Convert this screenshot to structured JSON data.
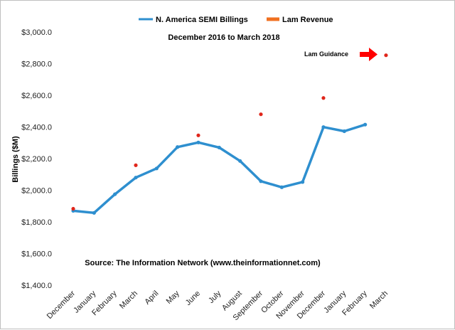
{
  "chart_data": {
    "type": "line",
    "title": "",
    "subtitle": "December 2016 to March 2018",
    "ylabel": "Billings ($M)",
    "xlabel": "",
    "categories": [
      "December",
      "January",
      "February",
      "March",
      "April",
      "May",
      "June",
      "July",
      "August",
      "September",
      "October",
      "November",
      "December",
      "January",
      "February",
      "March"
    ],
    "ylim": [
      1400,
      3000
    ],
    "yticks": [
      1400,
      1600,
      1800,
      2000,
      2200,
      2400,
      2600,
      2800,
      3000
    ],
    "ytick_labels": [
      "$1,400.0",
      "$1,600.0",
      "$1,800.0",
      "$2,000.0",
      "$2,200.0",
      "$2,400.0",
      "$2,600.0",
      "$2,800.0",
      "$3,000.0"
    ],
    "grid": false,
    "legend_position": "top-center",
    "series": [
      {
        "name": "N. America SEMI Billings",
        "style": "line",
        "color": "#2e8fcf",
        "values": [
          1870,
          1857,
          1975,
          2080,
          2138,
          2273,
          2302,
          2270,
          2185,
          2057,
          2019,
          2052,
          2399,
          2373,
          2415,
          null
        ]
      },
      {
        "name": "Lam Revenue",
        "style": "point",
        "color": "#e0261b",
        "legend_color": "#f07020",
        "values": [
          1883,
          null,
          null,
          2158,
          null,
          null,
          2347,
          null,
          null,
          2480,
          null,
          null,
          2583,
          null,
          null,
          2853
        ]
      }
    ],
    "annotations": {
      "guidance_label": "Lam Guidance",
      "guidance_arrow_color": "#ff0000",
      "source": "Source: The Information Network (www.theinformationnet.com)"
    }
  }
}
